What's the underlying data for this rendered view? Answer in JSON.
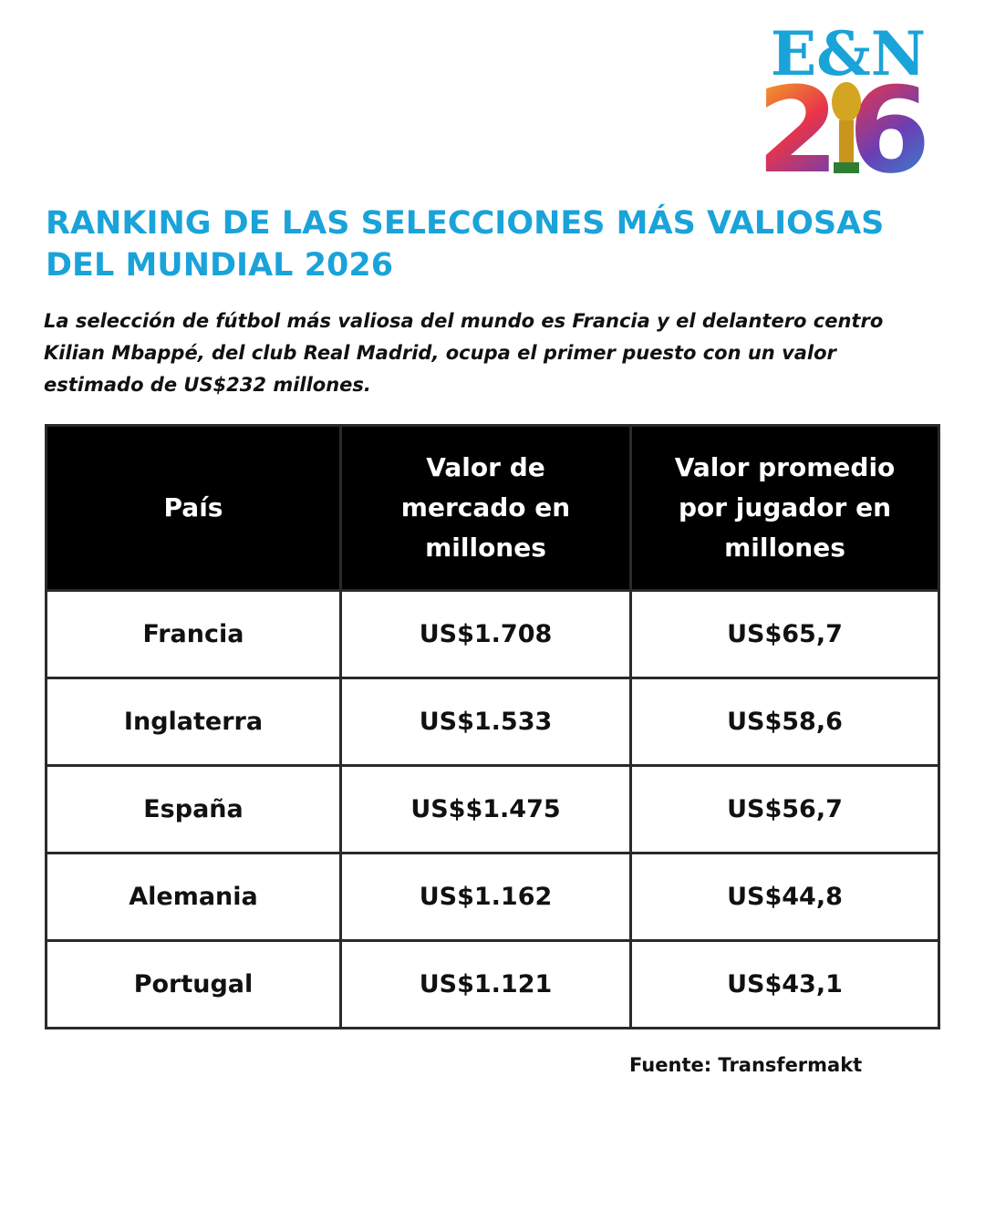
{
  "logo": {
    "brand": "E&N",
    "year": "26"
  },
  "header": {
    "title": "RANKING DE LAS SELECCIONES MÁS VALIOSAS DEL MUNDIAL 2026",
    "description": "La selección de fútbol más valiosa del mundo es Francia y el delantero centro Kilian Mbappé, del club Real Madrid, ocupa el primer puesto con un valor estimado de US$232 millones."
  },
  "table": {
    "columns": [
      "País",
      "Valor de mercado en millones",
      "Valor promedio por jugador en millones"
    ],
    "rows": [
      [
        "Francia",
        "US$1.708",
        "US$65,7"
      ],
      [
        "Inglaterra",
        "US$1.533",
        "US$58,6"
      ],
      [
        "España",
        "US$$1.475",
        "US$56,7"
      ],
      [
        "Alemania",
        "US$1.162",
        "US$44,8"
      ],
      [
        "Portugal",
        "US$1.121",
        "US$43,1"
      ]
    ]
  },
  "source": "Fuente: Transfermakt"
}
